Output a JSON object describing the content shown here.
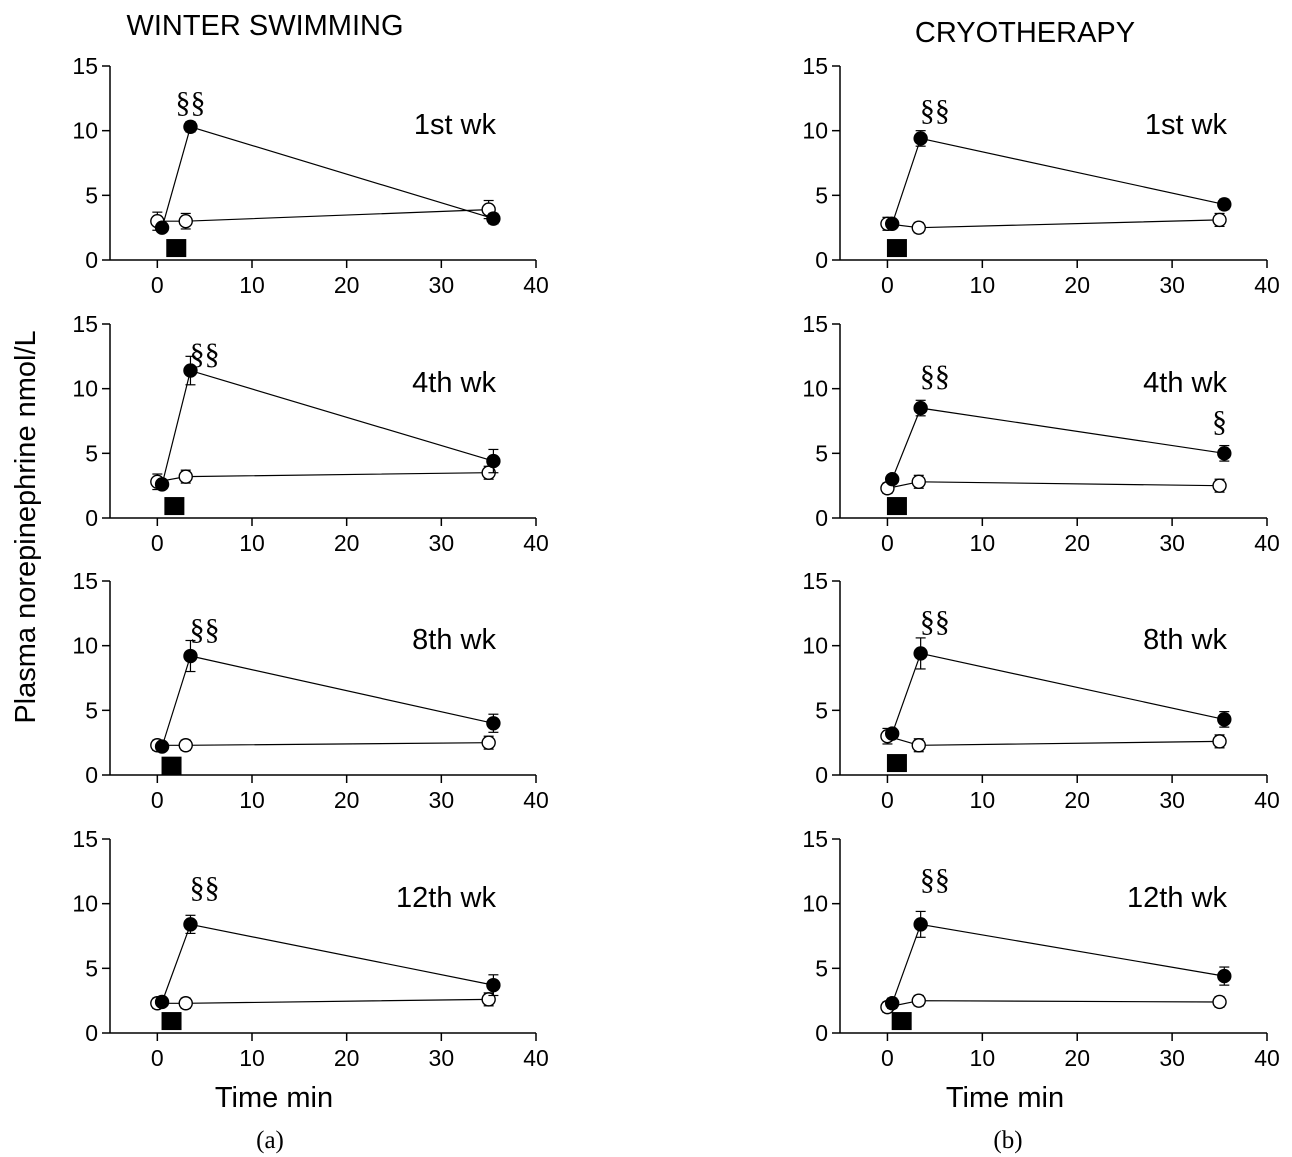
{
  "figure": {
    "ylabel": "Plasma norepinephrine nmol/L",
    "columns": [
      {
        "title": "WINTER SWIMMING",
        "xlabel": "Time min",
        "caption": "(a)"
      },
      {
        "title": "CRYOTHERAPY",
        "xlabel": "Time min",
        "caption": "(b)"
      }
    ]
  },
  "chart_data": [
    {
      "type": "line",
      "column": 0,
      "label": "1st wk",
      "xlim": [
        -5,
        40
      ],
      "ylim": [
        0,
        15
      ],
      "xticks": [
        0,
        10,
        20,
        30,
        40
      ],
      "yticks": [
        0,
        5,
        10,
        15
      ],
      "series": [
        {
          "marker": "filled",
          "x": [
            0.5,
            3.5,
            35.5
          ],
          "y": [
            2.5,
            10.3,
            3.2
          ],
          "err": [
            0.3,
            0.4,
            0.4
          ]
        },
        {
          "marker": "open",
          "x": [
            0,
            3,
            35
          ],
          "y": [
            3.0,
            3.0,
            3.9
          ],
          "err": [
            0.7,
            0.6,
            0.7
          ]
        }
      ],
      "annotations": [
        {
          "text": "§§",
          "x": 3.5,
          "y": 12.2
        }
      ],
      "stimulus": {
        "x": 2,
        "y": 1
      }
    },
    {
      "type": "line",
      "column": 0,
      "label": "4th wk",
      "xlim": [
        -5,
        40
      ],
      "ylim": [
        0,
        15
      ],
      "xticks": [
        0,
        10,
        20,
        30,
        40
      ],
      "yticks": [
        0,
        5,
        10,
        15
      ],
      "series": [
        {
          "marker": "filled",
          "x": [
            0.5,
            3.5,
            35.5
          ],
          "y": [
            2.6,
            11.4,
            4.4
          ],
          "err": [
            0.3,
            1.1,
            0.9
          ]
        },
        {
          "marker": "open",
          "x": [
            0,
            3,
            35
          ],
          "y": [
            2.8,
            3.2,
            3.5
          ],
          "err": [
            0.6,
            0.5,
            0.5
          ]
        }
      ],
      "annotations": [
        {
          "text": "§§",
          "x": 5,
          "y": 12.7
        }
      ],
      "stimulus": {
        "x": 1.8,
        "y": 1
      }
    },
    {
      "type": "line",
      "column": 0,
      "label": "8th wk",
      "xlim": [
        -5,
        40
      ],
      "ylim": [
        0,
        15
      ],
      "xticks": [
        0,
        10,
        20,
        30,
        40
      ],
      "yticks": [
        0,
        5,
        10,
        15
      ],
      "series": [
        {
          "marker": "filled",
          "x": [
            0.5,
            3.5,
            35.5
          ],
          "y": [
            2.2,
            9.2,
            4.0
          ],
          "err": [
            0.2,
            1.2,
            0.7
          ]
        },
        {
          "marker": "open",
          "x": [
            0,
            3,
            35
          ],
          "y": [
            2.3,
            2.3,
            2.5
          ],
          "err": [
            0.4,
            0.4,
            0.5
          ]
        }
      ],
      "annotations": [
        {
          "text": "§§",
          "x": 5,
          "y": 11.3
        }
      ],
      "stimulus": {
        "x": 1.5,
        "y": 0.8
      }
    },
    {
      "type": "line",
      "column": 0,
      "label": "12th wk",
      "xlim": [
        -5,
        40
      ],
      "ylim": [
        0,
        15
      ],
      "xticks": [
        0,
        10,
        20,
        30,
        40
      ],
      "yticks": [
        0,
        5,
        10,
        15
      ],
      "series": [
        {
          "marker": "filled",
          "x": [
            0.5,
            3.5,
            35.5
          ],
          "y": [
            2.4,
            8.4,
            3.7
          ],
          "err": [
            0.2,
            0.7,
            0.8
          ]
        },
        {
          "marker": "open",
          "x": [
            0,
            3,
            35
          ],
          "y": [
            2.3,
            2.3,
            2.6
          ],
          "err": [
            0.4,
            0.4,
            0.5
          ]
        }
      ],
      "annotations": [
        {
          "text": "§§",
          "x": 5,
          "y": 11.3
        }
      ],
      "stimulus": {
        "x": 1.5,
        "y": 1
      }
    },
    {
      "type": "line",
      "column": 1,
      "label": "1st wk",
      "xlim": [
        -5,
        40
      ],
      "ylim": [
        0,
        15
      ],
      "xticks": [
        0,
        10,
        20,
        30,
        40
      ],
      "yticks": [
        0,
        5,
        10,
        15
      ],
      "series": [
        {
          "marker": "filled",
          "x": [
            0.5,
            3.5,
            35.5
          ],
          "y": [
            2.8,
            9.4,
            4.3
          ],
          "err": [
            0.3,
            0.6,
            0.4
          ]
        },
        {
          "marker": "open",
          "x": [
            0,
            3.3,
            35
          ],
          "y": [
            2.8,
            2.5,
            3.1
          ],
          "err": [
            0.5,
            0.4,
            0.5
          ]
        }
      ],
      "annotations": [
        {
          "text": "§§",
          "x": 5,
          "y": 11.6
        }
      ],
      "stimulus": {
        "x": 1,
        "y": 1
      }
    },
    {
      "type": "line",
      "column": 1,
      "label": "4th wk",
      "xlim": [
        -5,
        40
      ],
      "ylim": [
        0,
        15
      ],
      "xticks": [
        0,
        10,
        20,
        30,
        40
      ],
      "yticks": [
        0,
        5,
        10,
        15
      ],
      "series": [
        {
          "marker": "filled",
          "x": [
            0.5,
            3.5,
            35.5
          ],
          "y": [
            3.0,
            8.5,
            5.0
          ],
          "err": [
            0.2,
            0.6,
            0.6
          ]
        },
        {
          "marker": "open",
          "x": [
            0,
            3.3,
            35
          ],
          "y": [
            2.3,
            2.8,
            2.5
          ],
          "err": [
            0.4,
            0.5,
            0.5
          ]
        }
      ],
      "annotations": [
        {
          "text": "§§",
          "x": 5,
          "y": 11.0
        },
        {
          "text": "§",
          "x": 35,
          "y": 7.5
        }
      ],
      "stimulus": {
        "x": 1,
        "y": 1
      }
    },
    {
      "type": "line",
      "column": 1,
      "label": "8th wk",
      "xlim": [
        -5,
        40
      ],
      "ylim": [
        0,
        15
      ],
      "xticks": [
        0,
        10,
        20,
        30,
        40
      ],
      "yticks": [
        0,
        5,
        10,
        15
      ],
      "series": [
        {
          "marker": "filled",
          "x": [
            0.5,
            3.5,
            35.5
          ],
          "y": [
            3.2,
            9.4,
            4.3
          ],
          "err": [
            0.3,
            1.2,
            0.6
          ]
        },
        {
          "marker": "open",
          "x": [
            0,
            3.3,
            35
          ],
          "y": [
            3.0,
            2.3,
            2.6
          ],
          "err": [
            0.6,
            0.5,
            0.5
          ]
        }
      ],
      "annotations": [
        {
          "text": "§§",
          "x": 5,
          "y": 11.9
        }
      ],
      "stimulus": {
        "x": 1,
        "y": 1
      }
    },
    {
      "type": "line",
      "column": 1,
      "label": "12th wk",
      "xlim": [
        -5,
        40
      ],
      "ylim": [
        0,
        15
      ],
      "xticks": [
        0,
        10,
        20,
        30,
        40
      ],
      "yticks": [
        0,
        5,
        10,
        15
      ],
      "series": [
        {
          "marker": "filled",
          "x": [
            0.5,
            3.5,
            35.5
          ],
          "y": [
            2.3,
            8.4,
            4.4
          ],
          "err": [
            0.4,
            1.0,
            0.7
          ]
        },
        {
          "marker": "open",
          "x": [
            0,
            3.3,
            35
          ],
          "y": [
            2.0,
            2.5,
            2.4
          ],
          "err": [
            0.4,
            0.4,
            0.4
          ]
        }
      ],
      "annotations": [
        {
          "text": "§§",
          "x": 5,
          "y": 11.9
        }
      ],
      "stimulus": {
        "x": 1.5,
        "y": 1
      }
    }
  ]
}
